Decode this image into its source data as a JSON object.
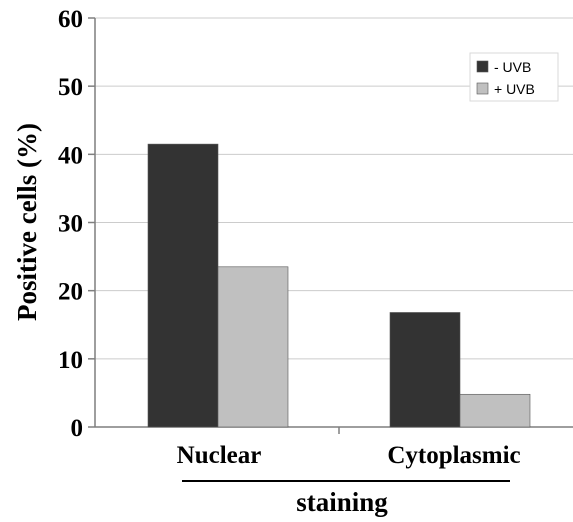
{
  "chart_data": {
    "type": "bar",
    "categories": [
      "Nuclear",
      "Cytoplasmic"
    ],
    "series": [
      {
        "name": "- UVB",
        "values": [
          41.5,
          16.8
        ],
        "color": "#333333"
      },
      {
        "name": "+ UVB",
        "values": [
          23.5,
          4.8
        ],
        "color": "#c0c0c0"
      }
    ],
    "yticks": [
      "0",
      "10",
      "20",
      "30",
      "40",
      "50",
      "60"
    ],
    "ylim": [
      0,
      60
    ],
    "ylabel": "Positive cells (%)",
    "xlabel": "staining",
    "grid": true,
    "legend_position": "top-right"
  }
}
